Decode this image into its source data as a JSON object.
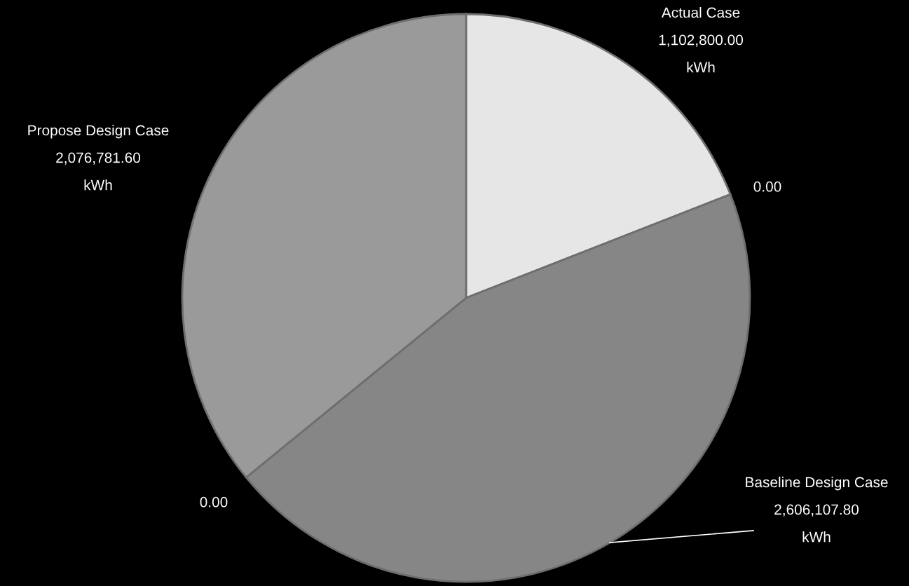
{
  "chart_data": {
    "type": "pie",
    "categories": [
      "Actual Case",
      null,
      "Baseline Design Case",
      null,
      "Propose Design Case"
    ],
    "values": [
      1102800.0,
      0.0,
      2606107.8,
      0.0,
      2076781.6
    ],
    "value_labels": [
      "1,102,800.00\nkWh",
      "0.00",
      "2,606,107.80\nkWh",
      "0.00",
      "2,076,781.60\nkWh"
    ],
    "colors": [
      "#e6e6e6",
      "#9a9a9a",
      "#868686",
      "#9a9a9a",
      "#9a9a9a"
    ]
  }
}
